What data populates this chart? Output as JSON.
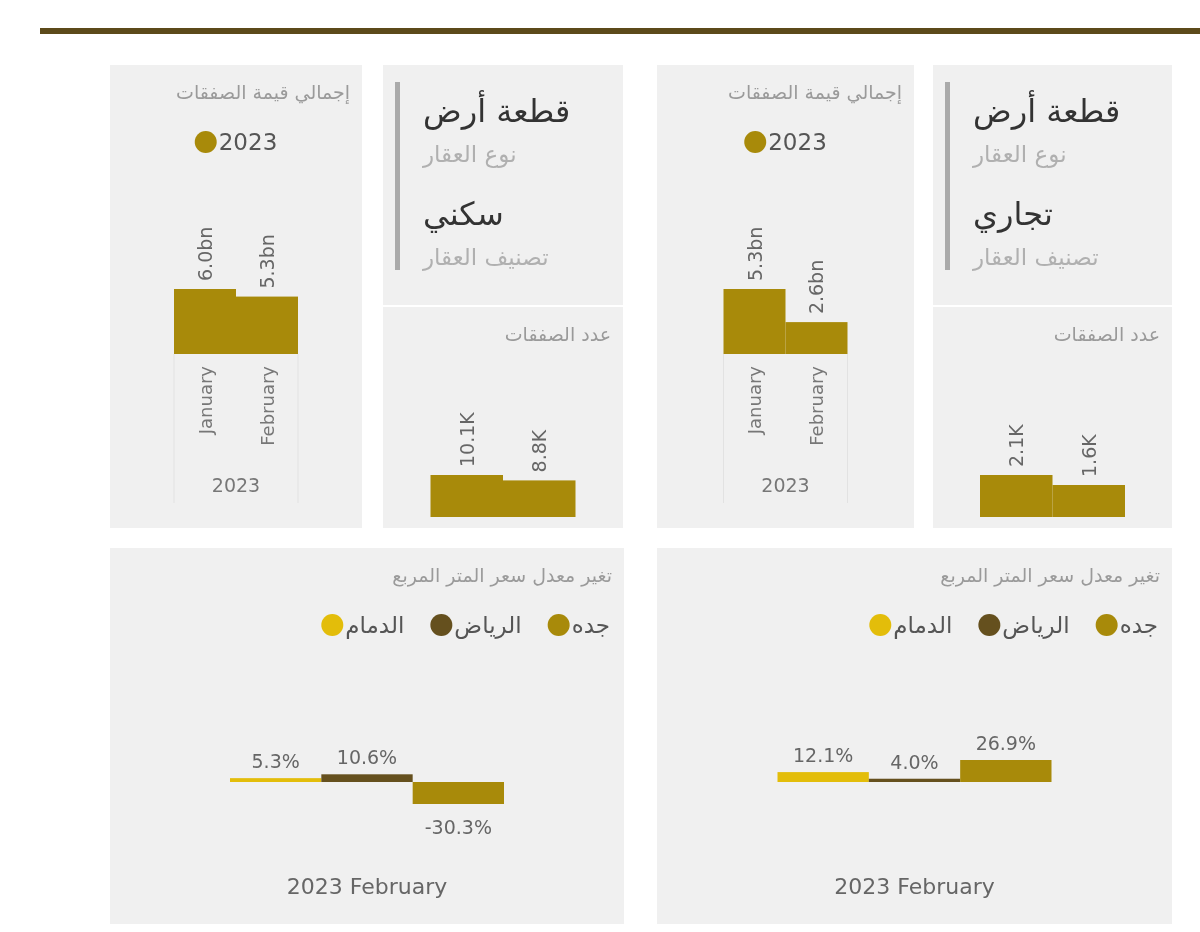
{
  "chart_data": [
    {
      "type": "bar",
      "title": "إجمالي قيمة الصفقات",
      "categories": [
        "January",
        "February"
      ],
      "xlabel": "2023",
      "legend": "top",
      "tick_labels": "x",
      "series": [
        {
          "name": "2023",
          "color": "#a88a0a",
          "values": [
            6.0,
            5.3
          ],
          "value_labels": [
            "6.0bn",
            "5.3bn"
          ]
        }
      ]
    },
    {
      "type": "other",
      "annotations": [
        "قطعة أرض",
        "نوع العقار",
        "سكني",
        "تصنيف العقار"
      ]
    },
    {
      "type": "bar",
      "title": "عدد الصفقات",
      "categories": [
        null,
        null
      ],
      "tick_labels": false,
      "color": "#a88a0a",
      "values": [
        10.1,
        8.8
      ],
      "value_labels": [
        "10.1K",
        "8.8K"
      ]
    },
    {
      "type": "bar",
      "title": "إجمالي قيمة الصفقات",
      "categories": [
        "January",
        "February"
      ],
      "xlabel": "2023",
      "legend": "top",
      "tick_labels": "x",
      "series": [
        {
          "name": "2023",
          "color": "#a88a0a",
          "values": [
            5.3,
            2.6
          ],
          "value_labels": [
            "5.3bn",
            "2.6bn"
          ]
        }
      ]
    },
    {
      "type": "other",
      "annotations": [
        "قطعة أرض",
        "نوع العقار",
        "تجاري",
        "تصنيف العقار"
      ]
    },
    {
      "type": "bar",
      "title": "عدد الصفقات",
      "categories": [
        null,
        null
      ],
      "tick_labels": false,
      "color": "#a88a0a",
      "values": [
        2.1,
        1.6
      ],
      "value_labels": [
        "2.1K",
        "1.6K"
      ]
    },
    {
      "type": "bar",
      "title": "تغير معدل سعر المتر المربع",
      "categories": [
        null
      ],
      "xlabel": "2023 February",
      "legend": "top right",
      "tick_labels": false,
      "series": [
        {
          "name": "الدمام",
          "color": "#e3bd0a",
          "values": [
            5.3
          ],
          "value_labels": [
            "5.3%"
          ]
        },
        {
          "name": "الرياض",
          "color": "#65501e",
          "values": [
            10.6
          ],
          "value_labels": [
            "10.6%"
          ]
        },
        {
          "name": "جده",
          "color": "#a88a0a",
          "values": [
            -30.3
          ],
          "value_labels": [
            "-30.3%"
          ]
        }
      ]
    },
    {
      "type": "bar",
      "title": "تغير معدل سعر المتر المربع",
      "categories": [
        null
      ],
      "xlabel": "2023 February",
      "legend": "top right",
      "tick_labels": false,
      "series": [
        {
          "name": "الدمام",
          "color": "#e3bd0a",
          "values": [
            12.1
          ],
          "value_labels": [
            "12.1%"
          ]
        },
        {
          "name": "الرياض",
          "color": "#65501e",
          "values": [
            4.0
          ],
          "value_labels": [
            "4.0%"
          ]
        },
        {
          "name": "جده",
          "color": "#a88a0a",
          "values": [
            26.9
          ],
          "value_labels": [
            "26.9%"
          ]
        }
      ]
    }
  ]
}
